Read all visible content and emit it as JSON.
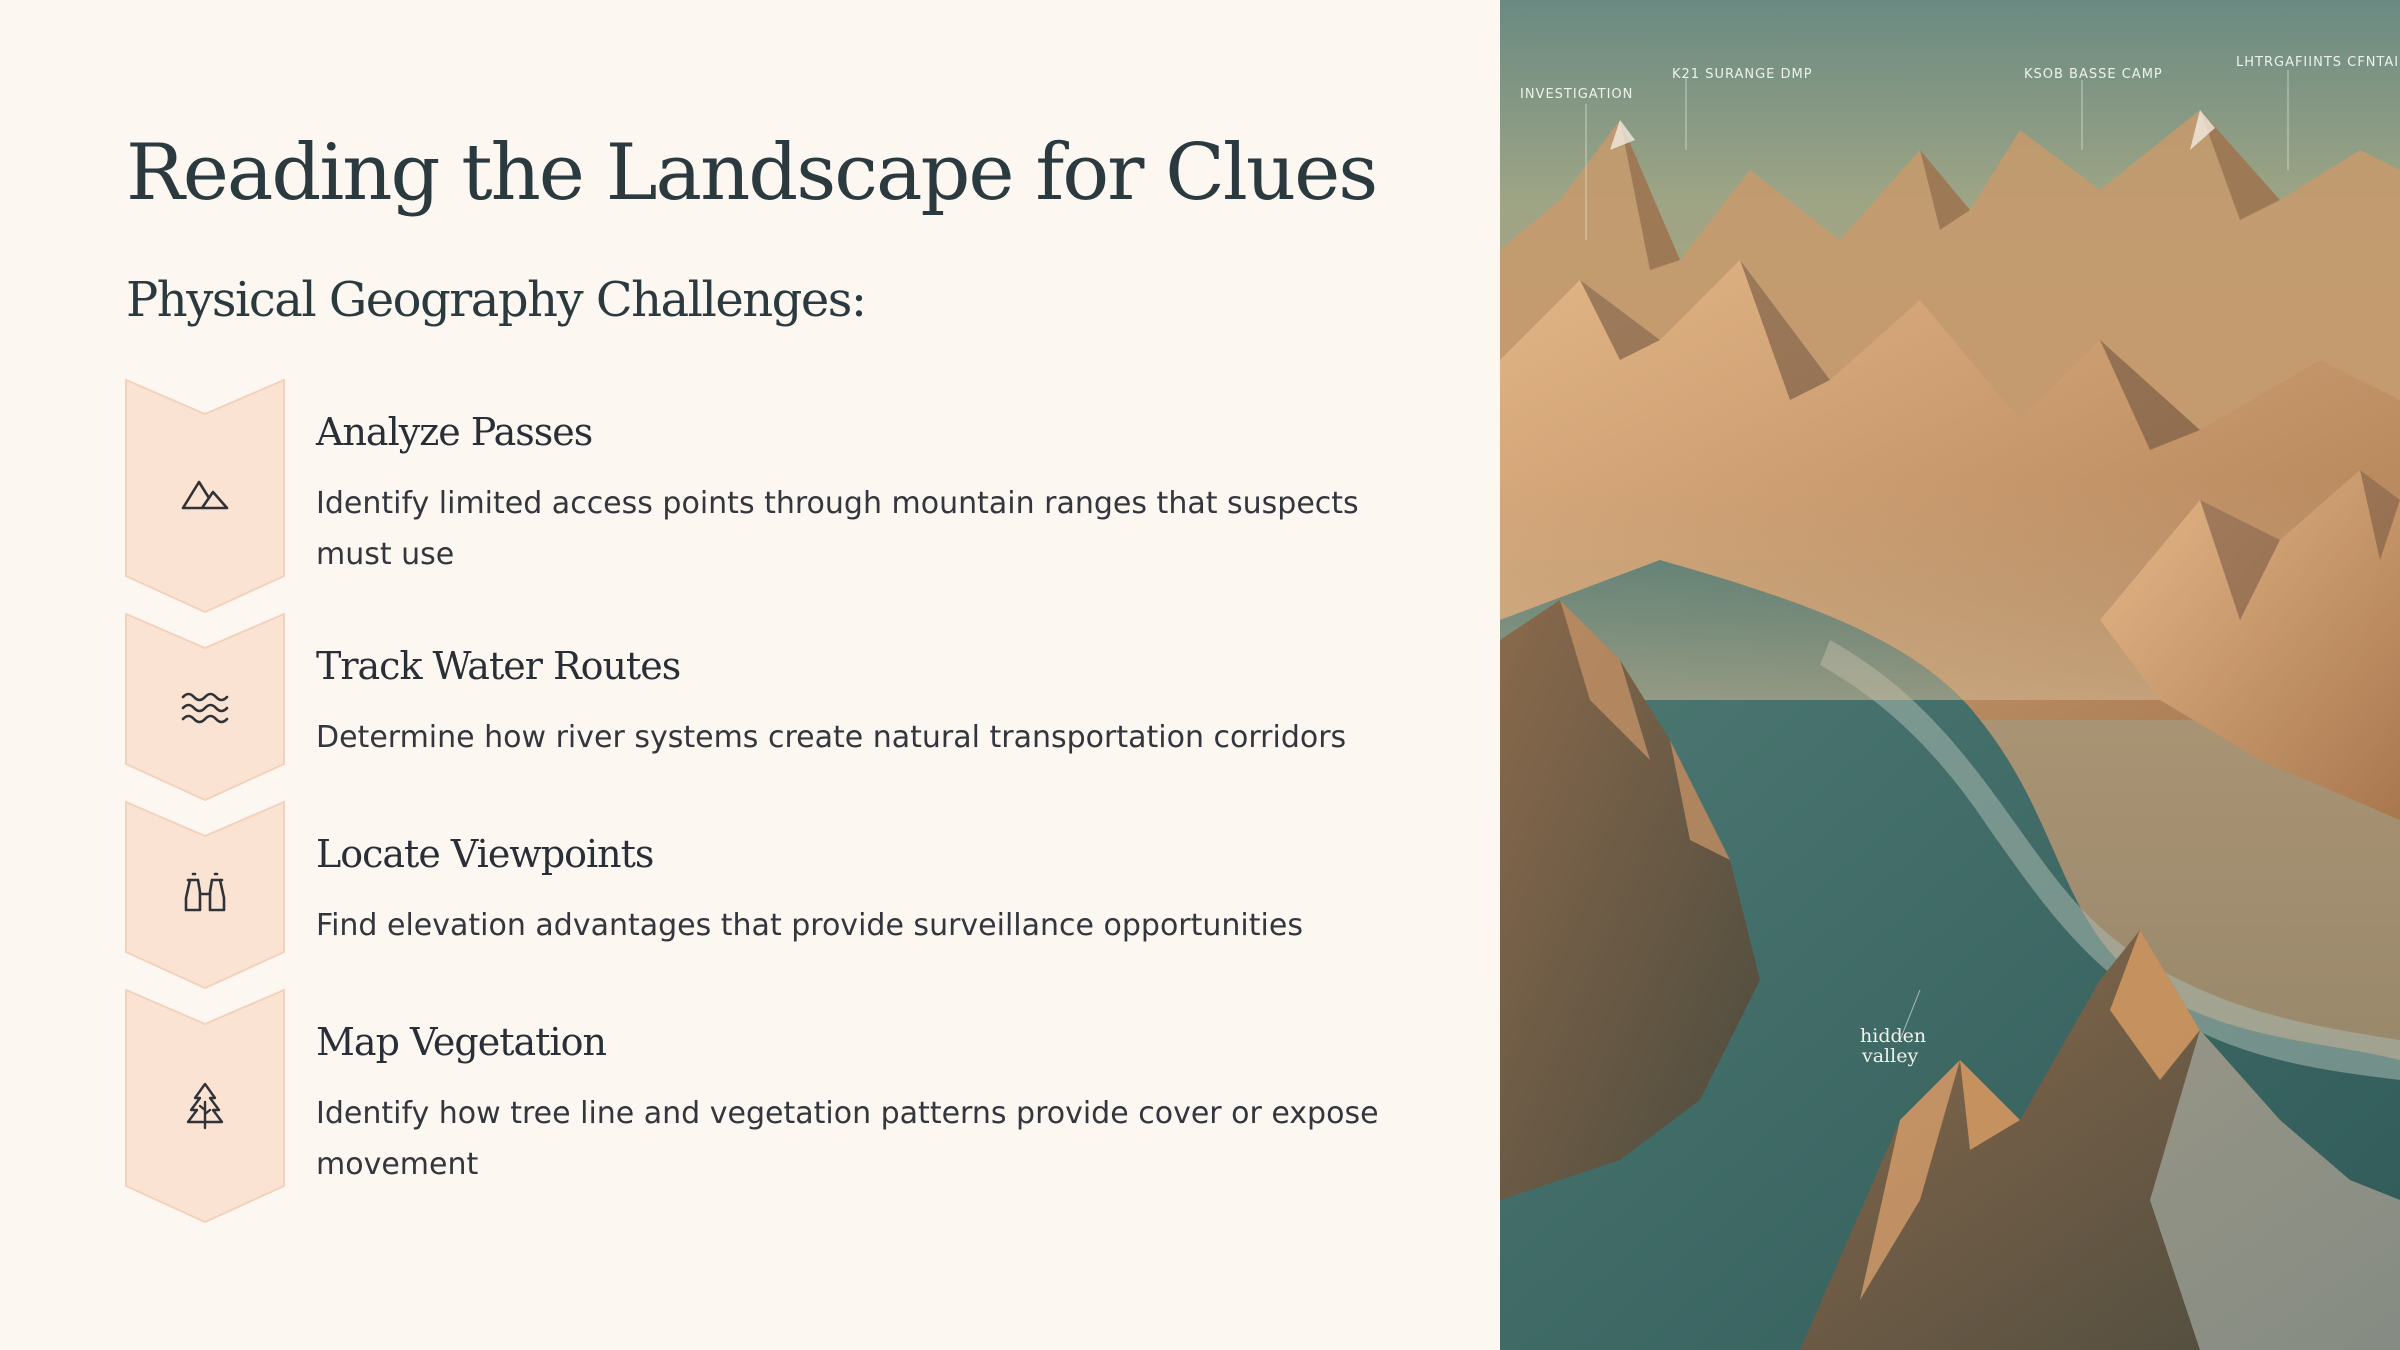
{
  "slide": {
    "title": "Reading the Landscape for Clues",
    "subtitle": "Physical Geography Challenges:"
  },
  "items": [
    {
      "title": "Analyze Passes",
      "description": "Identify limited access points through mountain ranges that suspects must use",
      "icon": "mountain-icon"
    },
    {
      "title": "Track Water Routes",
      "description": "Determine how river systems create natural transportation corridors",
      "icon": "waves-icon"
    },
    {
      "title": "Locate Viewpoints",
      "description": "Find elevation advantages that provide surveillance opportunities",
      "icon": "binoculars-icon"
    },
    {
      "title": "Map Vegetation",
      "description": "Identify how tree line and vegetation patterns provide cover or expose movement",
      "icon": "tree-icon"
    }
  ],
  "photo": {
    "labels": [
      "INVESTIGATION",
      "K21 SURANGE DMP",
      "KSOB BASSE CAMP",
      "LHTRGAFIINTS CFNTAIE"
    ],
    "valley_label": [
      "hidden",
      "valley"
    ]
  },
  "colors": {
    "background": "#fdf7f2",
    "chevron_fill": "#fbe3d3",
    "heading": "#2b3a3f",
    "body_text": "#33363c"
  }
}
